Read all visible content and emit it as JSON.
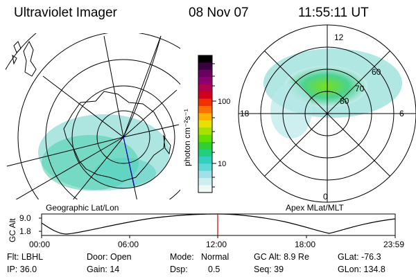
{
  "header": {
    "instrument": "Ultraviolet Imager",
    "date": "08 Nov 07",
    "time": "11:55:11 UT"
  },
  "geo_panel": {
    "caption": "Geographic Lat/Lon"
  },
  "apex_panel": {
    "caption": "Apex MLat/MLT",
    "mlt_labels": {
      "top": "12",
      "left": "18",
      "right": "6",
      "bottom": "0"
    },
    "lat_labels": [
      "60",
      "70",
      "80"
    ]
  },
  "colorbar": {
    "unit": "photon cm⁻²s⁻¹",
    "ticks": [
      "100",
      "10"
    ],
    "colors": [
      "#000000",
      "#3a0040",
      "#6a0060",
      "#8a0070",
      "#b00050",
      "#d00020",
      "#f03000",
      "#ff7000",
      "#ffb000",
      "#e8e000",
      "#a8e000",
      "#60e000",
      "#30d030",
      "#20d080",
      "#30d0c0",
      "#60d8d8",
      "#a0e0e8",
      "#d0eef0",
      "#f0f8f8"
    ]
  },
  "altitude_strip": {
    "axis_label": "GC Alt",
    "y_ticks": [
      "9.0",
      "1.8"
    ],
    "x_ticks": [
      "00:00",
      "06:00",
      "12:00",
      "18:00",
      "23:59"
    ]
  },
  "footer": {
    "row1": {
      "filter": "Flt: LBHL",
      "door": "Door: Open",
      "mode_label": "Mode:",
      "mode_value": "Normal",
      "gc_alt": "GC Alt: 8.9 Re",
      "glat": "GLat: -76.3"
    },
    "row2": {
      "ip": "IP: 36.0",
      "gain": "Gain: 14",
      "dsp_label": "Dsp:",
      "dsp_value": "0.5",
      "seq": "Seq: 39",
      "glon": "GLon: 134.8"
    }
  },
  "accent": {
    "orbit_marker": "#d00000",
    "track": "#0000c0"
  }
}
